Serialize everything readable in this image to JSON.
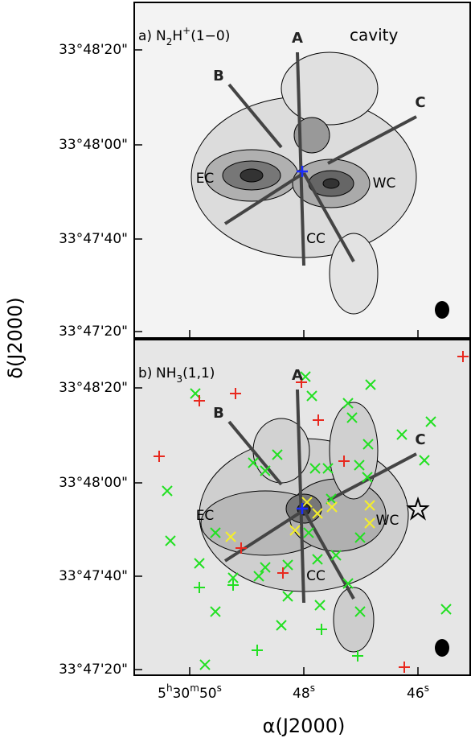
{
  "panels": [
    {
      "tag": "a)",
      "tracer": [
        {
          "t": "N"
        },
        {
          "sub": "2"
        },
        {
          "t": "H"
        },
        {
          "sup": "+"
        },
        {
          "t": "(1−0)"
        }
      ],
      "note": "cavity",
      "labels": [
        "A",
        "B",
        "C",
        "EC",
        "WC",
        "CC"
      ],
      "yticks": [
        "33°48'20\"",
        "33°48'00\"",
        "33°47'40\"",
        "33°47'20\""
      ]
    },
    {
      "tag": "b)",
      "tracer": [
        {
          "t": "NH"
        },
        {
          "sub": "3"
        },
        {
          "t": "(1,1)"
        }
      ],
      "labels": [
        "A",
        "B",
        "C",
        "EC",
        "WC",
        "CC"
      ],
      "yticks": [
        "33°48'20\"",
        "33°48'00\"",
        "33°47'40\"",
        "33°47'20\""
      ]
    }
  ],
  "xticks": [
    [
      {
        "t": "5"
      },
      {
        "sup": "h"
      },
      {
        "t": "30"
      },
      {
        "sup": "m"
      },
      {
        "t": "50"
      },
      {
        "sup": "s"
      }
    ],
    [
      {
        "t": "48"
      },
      {
        "sup": "s"
      }
    ],
    [
      {
        "t": "46"
      },
      {
        "sup": "s"
      }
    ]
  ],
  "xlabel": "α(J2000)",
  "ylabel": "δ(J2000)"
}
